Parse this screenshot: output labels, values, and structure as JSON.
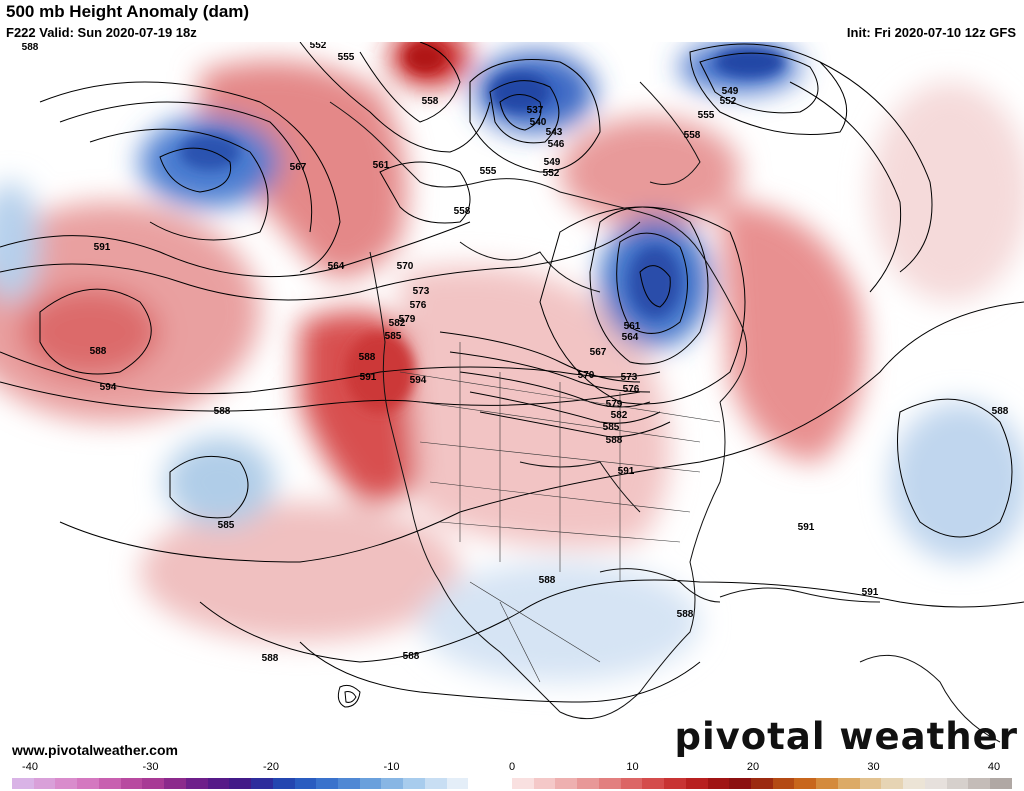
{
  "header": {
    "title": "500 mb Height Anomaly (dam)",
    "valid": "F222 Valid: Sun 2020-07-19 18z",
    "init": "Init: Fri 2020-07-10 12z GFS"
  },
  "footer": {
    "url": "www.pivotalweather.com",
    "logo": "pivotal weather"
  },
  "colorbar": {
    "ticks": [
      "-40",
      "-30",
      "-20",
      "-10",
      "0",
      "10",
      "20",
      "30",
      "40"
    ],
    "colors": [
      "#d9b3e6",
      "#d9a0d9",
      "#d98ccc",
      "#d478c0",
      "#c860b0",
      "#b84aa0",
      "#a83a95",
      "#8c2a8c",
      "#6e1f8a",
      "#561a88",
      "#421a88",
      "#2e2c9c",
      "#2446b0",
      "#2a5cc0",
      "#3a72cc",
      "#5088d4",
      "#6aa0dc",
      "#88b6e4",
      "#a8cced",
      "#c8def3",
      "#e4eef8",
      "#ffffff",
      "#ffffff",
      "#f9e0e0",
      "#f4c8c8",
      "#eeb0b0",
      "#e89898",
      "#e27f7f",
      "#dc6666",
      "#d44c4c",
      "#c83434",
      "#b82020",
      "#a01414",
      "#8c1010",
      "#9c2a10",
      "#b44a14",
      "#c8661c",
      "#d48a3c",
      "#dcaa66",
      "#e2c290",
      "#e6d4b4",
      "#ece4d6",
      "#e6e0dc",
      "#d6d0cc",
      "#c4bcb8",
      "#b0a8a4"
    ]
  },
  "contour_labels": [
    "588",
    "552",
    "555",
    "558",
    "549",
    "552",
    "555",
    "558",
    "537",
    "540",
    "543",
    "546",
    "549",
    "552",
    "555",
    "558",
    "561",
    "567",
    "564",
    "570",
    "573",
    "576",
    "579",
    "582",
    "585",
    "588",
    "591",
    "594",
    "588",
    "591",
    "594",
    "561",
    "564",
    "567",
    "570",
    "573",
    "576",
    "579",
    "582",
    "585",
    "588",
    "591",
    "588",
    "585",
    "591",
    "588",
    "588",
    "588",
    "591",
    "588",
    "588"
  ],
  "colors": {
    "positive": "#d84a4a",
    "negative": "#2a5cc0",
    "contour": "#000000"
  }
}
